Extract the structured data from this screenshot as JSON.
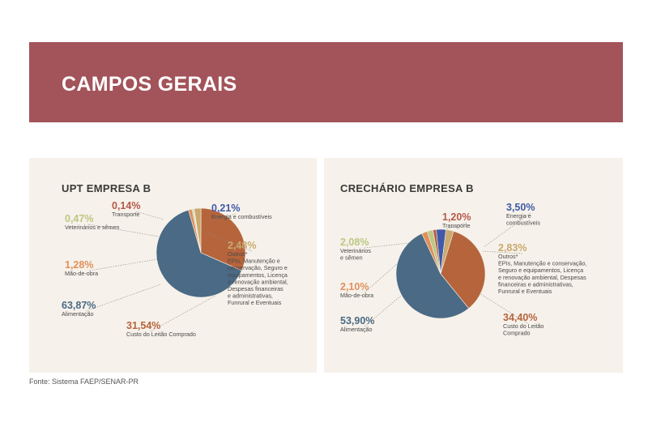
{
  "header": {
    "title": "CAMPOS GERAIS"
  },
  "source": "Fonte: Sistema FAEP/SENAR-PR",
  "chart_data": [
    {
      "type": "pie",
      "title": "UPT EMPRESA B",
      "slices": [
        {
          "label": "Transporte",
          "value": 0.14,
          "display": "0,14%",
          "color": "#b5584a",
          "label_lines": [
            "Transporte"
          ]
        },
        {
          "label": "Energia e combustíveis",
          "value": 0.21,
          "display": "0,21%",
          "color": "#3f5aa8",
          "label_lines": [
            "Energia e combustíveis"
          ]
        },
        {
          "label": "Outros",
          "value": 2.48,
          "display": "2,48%",
          "color": "#c9a96e",
          "label_lines": [
            "Outros*",
            "EPIs, Manutenção e",
            "conservação, Seguro e",
            "equipamentos, Licença",
            "e renovação ambiental,",
            "Despesas financeiras",
            "e administrativas,",
            "Funrural e Eventuais"
          ]
        },
        {
          "label": "Custo do Leitão Comprado",
          "value": 31.54,
          "display": "31,54%",
          "color": "#b6643c",
          "label_lines": [
            "Custo do Leitão Comprado"
          ]
        },
        {
          "label": "Alimentação",
          "value": 63.87,
          "display": "63,87%",
          "color": "#4a6a85",
          "label_lines": [
            "Alimentação"
          ]
        },
        {
          "label": "Mão-de-obra",
          "value": 1.28,
          "display": "1,28%",
          "color": "#e0905c",
          "label_lines": [
            "Mão-de-obra"
          ]
        },
        {
          "label": "Veterinários e sêmen",
          "value": 0.47,
          "display": "0,47%",
          "color": "#bcc882",
          "label_lines": [
            "Veterinários e sêmen"
          ]
        }
      ]
    },
    {
      "type": "pie",
      "title": "CRECHÁRIO EMPRESA B",
      "slices": [
        {
          "label": "Transporte",
          "value": 1.2,
          "display": "1,20%",
          "color": "#b5584a",
          "label_lines": [
            "Transporte"
          ]
        },
        {
          "label": "Energia e combustíveis",
          "value": 3.5,
          "display": "3,50%",
          "color": "#3f5aa8",
          "label_lines": [
            "Energia e",
            "combustíveis"
          ]
        },
        {
          "label": "Outros",
          "value": 2.83,
          "display": "2,83%",
          "color": "#c9a96e",
          "label_lines": [
            "Outros*",
            "EPIs, Manutenção e conservação,",
            "Seguro e equipamentos, Licença",
            "e renovação ambiental, Despesas",
            "financeiras e administrativas,",
            "Funrural e Eventuais"
          ]
        },
        {
          "label": "Custo do Leitão Comprado",
          "value": 34.4,
          "display": "34,40%",
          "color": "#b6643c",
          "label_lines": [
            "Custo do Leitão",
            "Comprado"
          ]
        },
        {
          "label": "Alimentação",
          "value": 53.9,
          "display": "53,90%",
          "color": "#4a6a85",
          "label_lines": [
            "Alimentação"
          ]
        },
        {
          "label": "Mão-de-obra",
          "value": 2.1,
          "display": "2,10%",
          "color": "#e0905c",
          "label_lines": [
            "Mão-de-obra"
          ]
        },
        {
          "label": "Veterinários e sêmen",
          "value": 2.08,
          "display": "2,08%",
          "color": "#bcc882",
          "label_lines": [
            "Veterinários",
            "e sêmen"
          ]
        }
      ]
    }
  ]
}
